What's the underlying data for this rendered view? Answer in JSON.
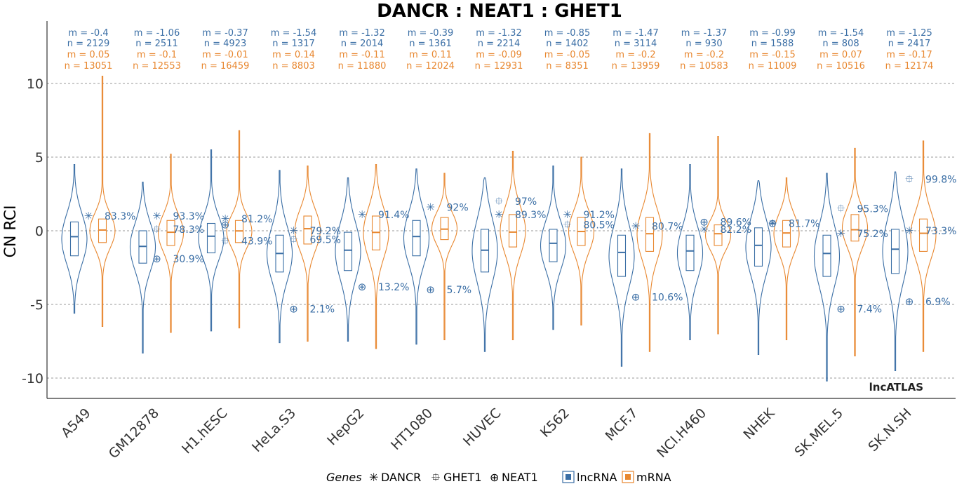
{
  "chart_data": {
    "type": "violin",
    "title": "DANCR : NEAT1 : GHET1",
    "ylabel": "CN RCI",
    "xlabel": "",
    "ylim": [
      -11,
      14
    ],
    "yticks": [
      10,
      5,
      0,
      -5,
      -10
    ],
    "ytick_labels": [
      "10",
      "5",
      "0",
      "-5",
      "-10"
    ],
    "grid": true,
    "watermark": "lncATLAS",
    "colors": {
      "lncRNA": "#3a6ea5",
      "mRNA": "#e8872f"
    },
    "legend": {
      "position": "bottom",
      "title": "Genes",
      "genes": [
        {
          "name": "DANCR",
          "glyph": "✳"
        },
        {
          "name": "GHET1",
          "glyph": "⯐"
        },
        {
          "name": "NEAT1",
          "glyph": "⊕"
        }
      ],
      "classes": [
        {
          "name": "lncRNA",
          "color": "#3a6ea5"
        },
        {
          "name": "mRNA",
          "color": "#e8872f"
        }
      ]
    },
    "categories": [
      "A549",
      "GM12878",
      "H1.hESC",
      "HeLa.S3",
      "HepG2",
      "HT1080",
      "HUVEC",
      "K562",
      "MCF.7",
      "NCI.H460",
      "NHEK",
      "SK.MEL.5",
      "SK.N.SH"
    ],
    "cells": [
      {
        "lnc": {
          "m": "m = -0.4",
          "n": "n = 2129",
          "median": -0.4,
          "q1": -1.7,
          "q3": 0.6,
          "min": -5.6,
          "max": 4.5
        },
        "mrna": {
          "m": "m = 0.05",
          "n": "n = 13051",
          "median": 0.05,
          "q1": -0.8,
          "q3": 0.8,
          "min": -6.5,
          "max": 10.5
        },
        "genes": [
          {
            "gene": "DANCR",
            "value": 1.0,
            "pct": "83.3%"
          }
        ]
      },
      {
        "lnc": {
          "m": "m = -1.06",
          "n": "n = 2511",
          "median": -1.06,
          "q1": -2.2,
          "q3": 0.0,
          "min": -8.3,
          "max": 3.3
        },
        "mrna": {
          "m": "m = -0.1",
          "n": "n = 12553",
          "median": -0.1,
          "q1": -1.0,
          "q3": 0.7,
          "min": -6.9,
          "max": 5.2
        },
        "genes": [
          {
            "gene": "DANCR",
            "value": 1.0,
            "pct": "93.3%"
          },
          {
            "gene": "GHET1",
            "value": 0.1,
            "pct": "78.3%"
          },
          {
            "gene": "NEAT1",
            "value": -1.9,
            "pct": "30.9%"
          }
        ]
      },
      {
        "lnc": {
          "m": "m = -0.37",
          "n": "n = 4923",
          "median": -0.37,
          "q1": -1.5,
          "q3": 0.5,
          "min": -6.8,
          "max": 5.5
        },
        "mrna": {
          "m": "m = -0.01",
          "n": "n = 16459",
          "median": -0.01,
          "q1": -0.8,
          "q3": 0.7,
          "min": -6.6,
          "max": 6.8
        },
        "genes": [
          {
            "gene": "DANCR",
            "value": 0.8,
            "pct": "81.2%"
          },
          {
            "gene": "GHET1",
            "value": -0.7,
            "pct": "43.9%"
          },
          {
            "gene": "NEAT1",
            "value": 0.4,
            "pct": ""
          }
        ]
      },
      {
        "lnc": {
          "m": "m = -1.54",
          "n": "n = 1317",
          "median": -1.54,
          "q1": -2.8,
          "q3": -0.3,
          "min": -7.6,
          "max": 4.1
        },
        "mrna": {
          "m": "m = 0.14",
          "n": "n = 8803",
          "median": 0.14,
          "q1": -0.9,
          "q3": 1.0,
          "min": -7.5,
          "max": 4.4
        },
        "genes": [
          {
            "gene": "DANCR",
            "value": 0.0,
            "pct": "79.2%"
          },
          {
            "gene": "GHET1",
            "value": -0.6,
            "pct": "69.5%"
          },
          {
            "gene": "NEAT1",
            "value": -5.3,
            "pct": "2.1%"
          }
        ]
      },
      {
        "lnc": {
          "m": "m = -1.32",
          "n": "n = 2014",
          "median": -1.32,
          "q1": -2.7,
          "q3": -0.1,
          "min": -7.5,
          "max": 3.6
        },
        "mrna": {
          "m": "m = -0.11",
          "n": "n = 11880",
          "median": -0.11,
          "q1": -1.3,
          "q3": 1.0,
          "min": -8.0,
          "max": 4.5
        },
        "genes": [
          {
            "gene": "DANCR",
            "value": 1.1,
            "pct": "91.4%"
          },
          {
            "gene": "NEAT1",
            "value": -3.8,
            "pct": "13.2%"
          }
        ]
      },
      {
        "lnc": {
          "m": "m = -0.39",
          "n": "n = 1361",
          "median": -0.39,
          "q1": -1.7,
          "q3": 0.7,
          "min": -7.7,
          "max": 4.2
        },
        "mrna": {
          "m": "m = 0.11",
          "n": "n = 12024",
          "median": 0.11,
          "q1": -0.6,
          "q3": 0.9,
          "min": -7.4,
          "max": 3.9
        },
        "genes": [
          {
            "gene": "DANCR",
            "value": 1.6,
            "pct": "92%"
          },
          {
            "gene": "NEAT1",
            "value": -4.0,
            "pct": "5.7%"
          }
        ]
      },
      {
        "lnc": {
          "m": "m = -1.32",
          "n": "n = 2214",
          "median": -1.32,
          "q1": -2.8,
          "q3": 0.1,
          "min": -8.2,
          "max": 3.6
        },
        "mrna": {
          "m": "m = -0.09",
          "n": "n = 12931",
          "median": -0.09,
          "q1": -1.1,
          "q3": 1.1,
          "min": -7.4,
          "max": 5.4
        },
        "genes": [
          {
            "gene": "GHET1",
            "value": 2.0,
            "pct": "97%"
          },
          {
            "gene": "DANCR",
            "value": 1.1,
            "pct": "89.3%"
          }
        ]
      },
      {
        "lnc": {
          "m": "m = -0.85",
          "n": "n = 1402",
          "median": -0.85,
          "q1": -2.1,
          "q3": 0.1,
          "min": -6.7,
          "max": 4.4
        },
        "mrna": {
          "m": "m = -0.05",
          "n": "n = 8351",
          "median": -0.05,
          "q1": -1.0,
          "q3": 0.9,
          "min": -6.4,
          "max": 5.0
        },
        "genes": [
          {
            "gene": "DANCR",
            "value": 1.1,
            "pct": "91.2%"
          },
          {
            "gene": "GHET1",
            "value": 0.4,
            "pct": "80.5%"
          }
        ]
      },
      {
        "lnc": {
          "m": "m = -1.47",
          "n": "n = 3114",
          "median": -1.47,
          "q1": -3.1,
          "q3": -0.3,
          "min": -9.2,
          "max": 4.2
        },
        "mrna": {
          "m": "m = -0.2",
          "n": "n = 13959",
          "median": -0.2,
          "q1": -1.4,
          "q3": 0.9,
          "min": -8.2,
          "max": 6.6
        },
        "genes": [
          {
            "gene": "DANCR",
            "value": 0.3,
            "pct": "80.7%"
          },
          {
            "gene": "NEAT1",
            "value": -4.5,
            "pct": "10.6%"
          }
        ]
      },
      {
        "lnc": {
          "m": "m = -1.37",
          "n": "n = 930",
          "median": -1.37,
          "q1": -2.7,
          "q3": -0.3,
          "min": -7.4,
          "max": 4.5
        },
        "mrna": {
          "m": "m = -0.2",
          "n": "n = 10583",
          "median": -0.2,
          "q1": -1.0,
          "q3": 0.4,
          "min": -7.0,
          "max": 6.4
        },
        "genes": [
          {
            "gene": "NEAT1",
            "value": 0.6,
            "pct": "89.6%"
          },
          {
            "gene": "DANCR",
            "value": 0.1,
            "pct": "82.2%"
          }
        ]
      },
      {
        "lnc": {
          "m": "m = -0.99",
          "n": "n = 1588",
          "median": -0.99,
          "q1": -2.4,
          "q3": 0.2,
          "min": -8.4,
          "max": 3.4
        },
        "mrna": {
          "m": "m = -0.15",
          "n": "n = 11009",
          "median": -0.15,
          "q1": -1.1,
          "q3": 0.7,
          "min": -7.4,
          "max": 3.6
        },
        "genes": [
          {
            "gene": "DANCR",
            "value": 0.5,
            "pct": "81.7%"
          },
          {
            "gene": "NEAT1",
            "value": 0.5,
            "pct": ""
          }
        ]
      },
      {
        "lnc": {
          "m": "m = -1.54",
          "n": "n = 808",
          "median": -1.54,
          "q1": -3.1,
          "q3": -0.3,
          "min": -10.2,
          "max": 3.9
        },
        "mrna": {
          "m": "m = 0.07",
          "n": "n = 10516",
          "median": 0.07,
          "q1": -0.7,
          "q3": 1.1,
          "min": -8.5,
          "max": 5.6
        },
        "genes": [
          {
            "gene": "GHET1",
            "value": 1.5,
            "pct": "95.3%"
          },
          {
            "gene": "DANCR",
            "value": -0.2,
            "pct": "75.2%"
          },
          {
            "gene": "NEAT1",
            "value": -5.3,
            "pct": "7.4%"
          }
        ]
      },
      {
        "lnc": {
          "m": "m = -1.25",
          "n": "n = 2417",
          "median": -1.25,
          "q1": -2.9,
          "q3": 0.1,
          "min": -9.5,
          "max": 4.0
        },
        "mrna": {
          "m": "m = -0.17",
          "n": "n = 12174",
          "median": -0.17,
          "q1": -1.4,
          "q3": 0.8,
          "min": -8.2,
          "max": 6.1
        },
        "genes": [
          {
            "gene": "GHET1",
            "value": 3.5,
            "pct": "99.8%"
          },
          {
            "gene": "DANCR",
            "value": 0.0,
            "pct": "73.3%"
          },
          {
            "gene": "NEAT1",
            "value": -4.8,
            "pct": "6.9%"
          }
        ]
      }
    ]
  }
}
